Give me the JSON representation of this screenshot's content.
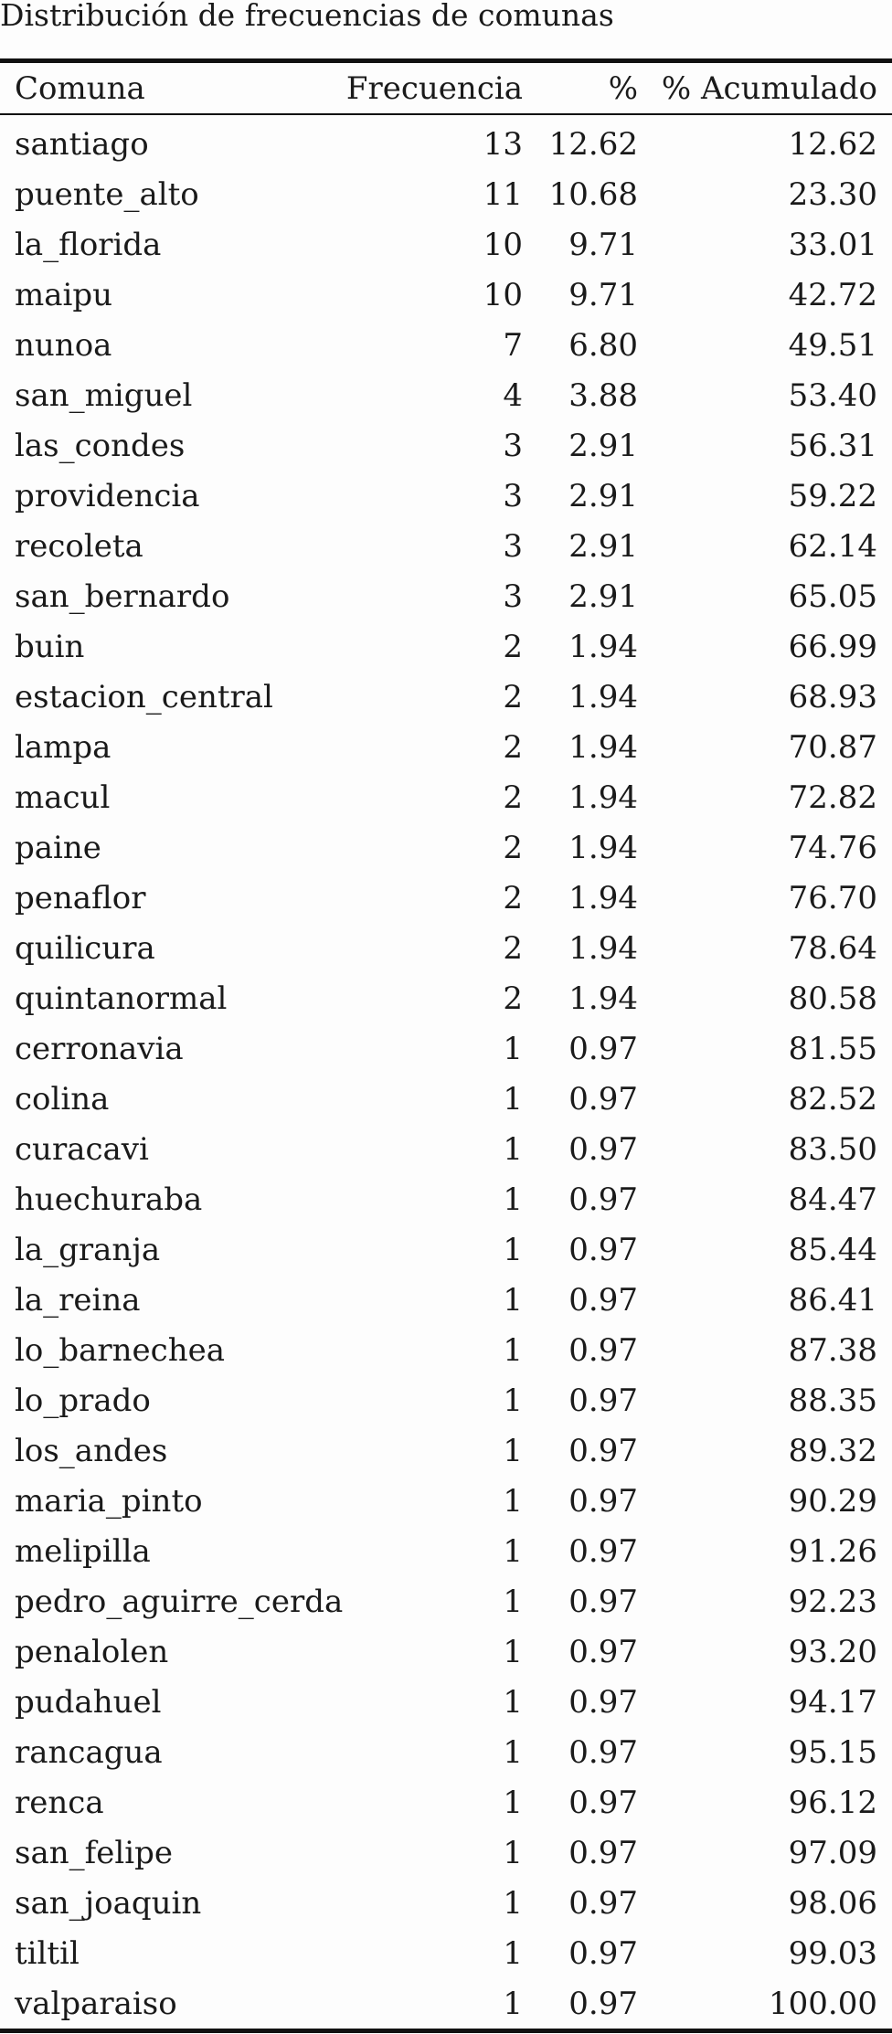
{
  "caption": "Distribución de frecuencias de comunas",
  "table": {
    "headers": [
      "Comuna",
      "Frecuencia",
      "%",
      "% Acumulado"
    ],
    "rows": [
      [
        "santiago",
        "13",
        "12.62",
        "12.62"
      ],
      [
        "puente_alto",
        "11",
        "10.68",
        "23.30"
      ],
      [
        "la_florida",
        "10",
        "9.71",
        "33.01"
      ],
      [
        "maipu",
        "10",
        "9.71",
        "42.72"
      ],
      [
        "nunoa",
        "7",
        "6.80",
        "49.51"
      ],
      [
        "san_miguel",
        "4",
        "3.88",
        "53.40"
      ],
      [
        "las_condes",
        "3",
        "2.91",
        "56.31"
      ],
      [
        "providencia",
        "3",
        "2.91",
        "59.22"
      ],
      [
        "recoleta",
        "3",
        "2.91",
        "62.14"
      ],
      [
        "san_bernardo",
        "3",
        "2.91",
        "65.05"
      ],
      [
        "buin",
        "2",
        "1.94",
        "66.99"
      ],
      [
        "estacion_central",
        "2",
        "1.94",
        "68.93"
      ],
      [
        "lampa",
        "2",
        "1.94",
        "70.87"
      ],
      [
        "macul",
        "2",
        "1.94",
        "72.82"
      ],
      [
        "paine",
        "2",
        "1.94",
        "74.76"
      ],
      [
        "penaflor",
        "2",
        "1.94",
        "76.70"
      ],
      [
        "quilicura",
        "2",
        "1.94",
        "78.64"
      ],
      [
        "quintanormal",
        "2",
        "1.94",
        "80.58"
      ],
      [
        "cerronavia",
        "1",
        "0.97",
        "81.55"
      ],
      [
        "colina",
        "1",
        "0.97",
        "82.52"
      ],
      [
        "curacavi",
        "1",
        "0.97",
        "83.50"
      ],
      [
        "huechuraba",
        "1",
        "0.97",
        "84.47"
      ],
      [
        "la_granja",
        "1",
        "0.97",
        "85.44"
      ],
      [
        "la_reina",
        "1",
        "0.97",
        "86.41"
      ],
      [
        "lo_barnechea",
        "1",
        "0.97",
        "87.38"
      ],
      [
        "lo_prado",
        "1",
        "0.97",
        "88.35"
      ],
      [
        "los_andes",
        "1",
        "0.97",
        "89.32"
      ],
      [
        "maria_pinto",
        "1",
        "0.97",
        "90.29"
      ],
      [
        "melipilla",
        "1",
        "0.97",
        "91.26"
      ],
      [
        "pedro_aguirre_cerda",
        "1",
        "0.97",
        "92.23"
      ],
      [
        "penalolen",
        "1",
        "0.97",
        "93.20"
      ],
      [
        "pudahuel",
        "1",
        "0.97",
        "94.17"
      ],
      [
        "rancagua",
        "1",
        "0.97",
        "95.15"
      ],
      [
        "renca",
        "1",
        "0.97",
        "96.12"
      ],
      [
        "san_felipe",
        "1",
        "0.97",
        "97.09"
      ],
      [
        "san_joaquin",
        "1",
        "0.97",
        "98.06"
      ],
      [
        "tiltil",
        "1",
        "0.97",
        "99.03"
      ],
      [
        "valparaiso",
        "1",
        "0.97",
        "100.00"
      ]
    ]
  }
}
